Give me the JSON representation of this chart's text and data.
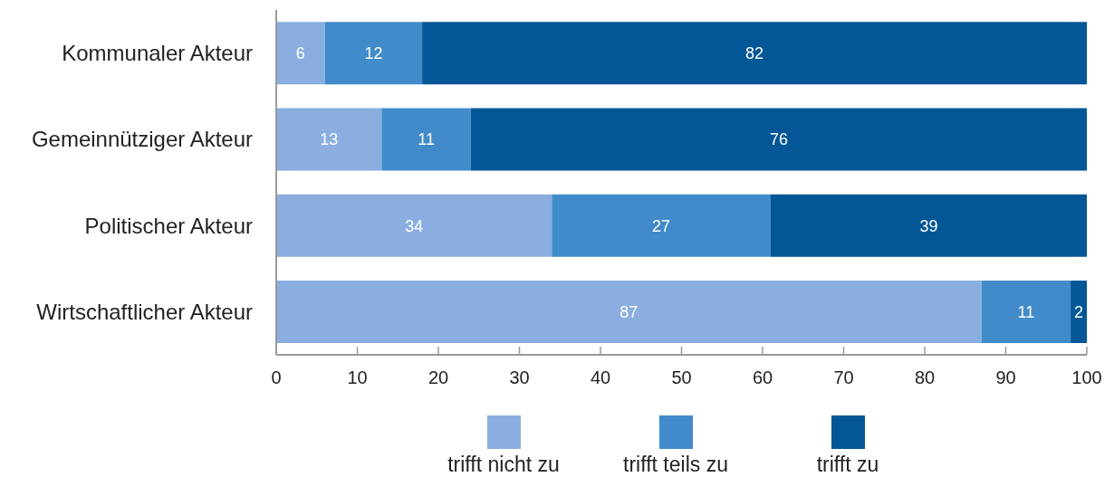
{
  "chart_data": {
    "type": "bar",
    "orientation": "horizontal",
    "stacked": true,
    "categories": [
      "Kommunaler Akteur",
      "Gemeinnütziger Akteur",
      "Politischer Akteur",
      "Wirtschaftlicher Akteur"
    ],
    "series": [
      {
        "name": "trifft nicht zu",
        "color": "#8aaee0",
        "values": [
          6,
          13,
          34,
          87
        ]
      },
      {
        "name": "trifft teils zu",
        "color": "#428bca",
        "values": [
          12,
          11,
          27,
          11
        ]
      },
      {
        "name": "trifft zu",
        "color": "#045796",
        "values": [
          82,
          76,
          39,
          2
        ]
      }
    ],
    "xlim": [
      0,
      100
    ],
    "xticks": [
      0,
      10,
      20,
      30,
      40,
      50,
      60,
      70,
      80,
      90,
      100
    ],
    "data_labels": true,
    "legend": "bottom"
  }
}
